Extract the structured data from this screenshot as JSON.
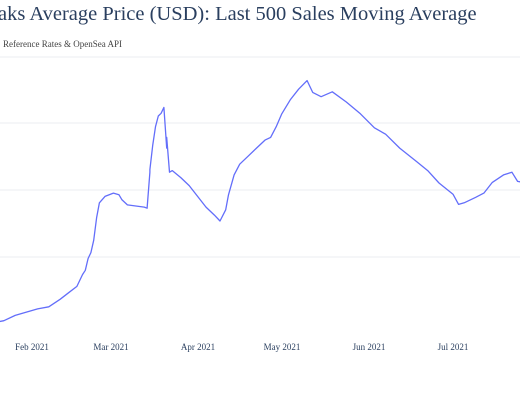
{
  "chart_data": {
    "type": "line",
    "title": "aks Average Price (USD): Last 500 Sales Moving Average",
    "subtitle": "Reference Rates & OpenSea API",
    "xlabel": "",
    "ylabel": "",
    "grid": true,
    "legend": "none",
    "x_ticks": [
      "Feb 2021",
      "Mar 2021",
      "Apr 2021",
      "May 2021",
      "Jun 2021",
      "Jul 2021"
    ],
    "y_gridlines": 4,
    "line_color": "#636efa",
    "series": [
      {
        "name": "",
        "points": [
          [
            "2021-01-19",
            0.5
          ],
          [
            "2021-01-22",
            0.8
          ],
          [
            "2021-01-26",
            1.8
          ],
          [
            "2021-01-30",
            2.4
          ],
          [
            "2021-02-03",
            3.0
          ],
          [
            "2021-02-07",
            3.4
          ],
          [
            "2021-02-11",
            4.8
          ],
          [
            "2021-02-14",
            6.0
          ],
          [
            "2021-02-17",
            7.2
          ],
          [
            "2021-02-19",
            9.4
          ],
          [
            "2021-02-20",
            10.2
          ],
          [
            "2021-02-21",
            12.4
          ],
          [
            "2021-02-22",
            13.5
          ],
          [
            "2021-02-23",
            15.8
          ],
          [
            "2021-02-24",
            20.0
          ],
          [
            "2021-02-25",
            22.8
          ],
          [
            "2021-02-27",
            24.0
          ],
          [
            "2021-03-02",
            24.6
          ],
          [
            "2021-03-04",
            24.3
          ],
          [
            "2021-03-05",
            23.4
          ],
          [
            "2021-03-07",
            22.4
          ],
          [
            "2021-03-10",
            22.2
          ],
          [
            "2021-03-13",
            22.0
          ],
          [
            "2021-03-14",
            21.8
          ],
          [
            "2021-03-15",
            28.5
          ],
          [
            "2021-03-15",
            29.0
          ],
          [
            "2021-03-16",
            33.5
          ],
          [
            "2021-03-17",
            37.0
          ],
          [
            "2021-03-18",
            39.0
          ],
          [
            "2021-03-19",
            39.5
          ],
          [
            "2021-03-20",
            40.6
          ],
          [
            "2021-03-21",
            33.0
          ],
          [
            "2021-03-21",
            35.0
          ],
          [
            "2021-03-22",
            28.5
          ],
          [
            "2021-03-23",
            28.8
          ],
          [
            "2021-03-26",
            27.5
          ],
          [
            "2021-03-29",
            26.0
          ],
          [
            "2021-04-01",
            24.0
          ],
          [
            "2021-04-04",
            22.0
          ],
          [
            "2021-04-07",
            20.5
          ],
          [
            "2021-04-09",
            19.4
          ],
          [
            "2021-04-11",
            21.5
          ],
          [
            "2021-04-12",
            24.3
          ],
          [
            "2021-04-14",
            28.0
          ],
          [
            "2021-04-16",
            30.0
          ],
          [
            "2021-04-19",
            31.5
          ],
          [
            "2021-04-22",
            33.0
          ],
          [
            "2021-04-25",
            34.5
          ],
          [
            "2021-04-27",
            35.0
          ],
          [
            "2021-04-29",
            37.0
          ],
          [
            "2021-05-01",
            39.4
          ],
          [
            "2021-05-04",
            42.0
          ],
          [
            "2021-05-07",
            44.0
          ],
          [
            "2021-05-10",
            45.6
          ],
          [
            "2021-05-12",
            43.4
          ],
          [
            "2021-05-15",
            42.6
          ],
          [
            "2021-05-19",
            43.5
          ],
          [
            "2021-05-24",
            41.6
          ],
          [
            "2021-05-29",
            39.4
          ],
          [
            "2021-06-03",
            36.8
          ],
          [
            "2021-06-07",
            35.6
          ],
          [
            "2021-06-12",
            33.0
          ],
          [
            "2021-06-18",
            30.5
          ],
          [
            "2021-06-22",
            28.8
          ],
          [
            "2021-06-26",
            26.5
          ],
          [
            "2021-07-01",
            24.4
          ],
          [
            "2021-07-03",
            22.5
          ],
          [
            "2021-07-05",
            22.8
          ],
          [
            "2021-07-09",
            23.8
          ],
          [
            "2021-07-12",
            24.6
          ],
          [
            "2021-07-15",
            26.6
          ],
          [
            "2021-07-19",
            28.0
          ],
          [
            "2021-07-22",
            28.5
          ],
          [
            "2021-07-24",
            26.8
          ],
          [
            "2021-07-26",
            26.6
          ]
        ]
      }
    ]
  }
}
